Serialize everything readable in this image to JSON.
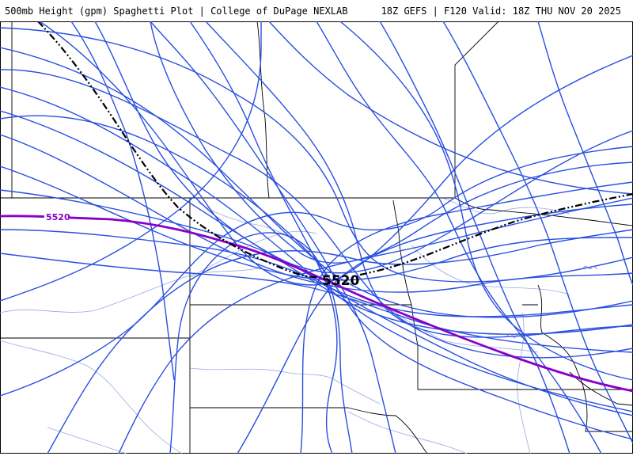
{
  "header": {
    "title": "500mb Height (gpm) Spaghetti Plot | College of DuPage NEXLAB",
    "run_info": "18Z GEFS | F120 Valid: 18Z THU NOV 20 2025"
  },
  "contours": {
    "level": "5520",
    "ensemble_mean_label": "5520",
    "climatology_label": "5520",
    "member_color": "#2a4fe0",
    "climatology_color": "#8a00c8",
    "mean_color": "#000000",
    "member_count": 31
  },
  "colors": {
    "state_border": "#000000",
    "county_river": "#9aaae0",
    "background": "#ffffff"
  }
}
